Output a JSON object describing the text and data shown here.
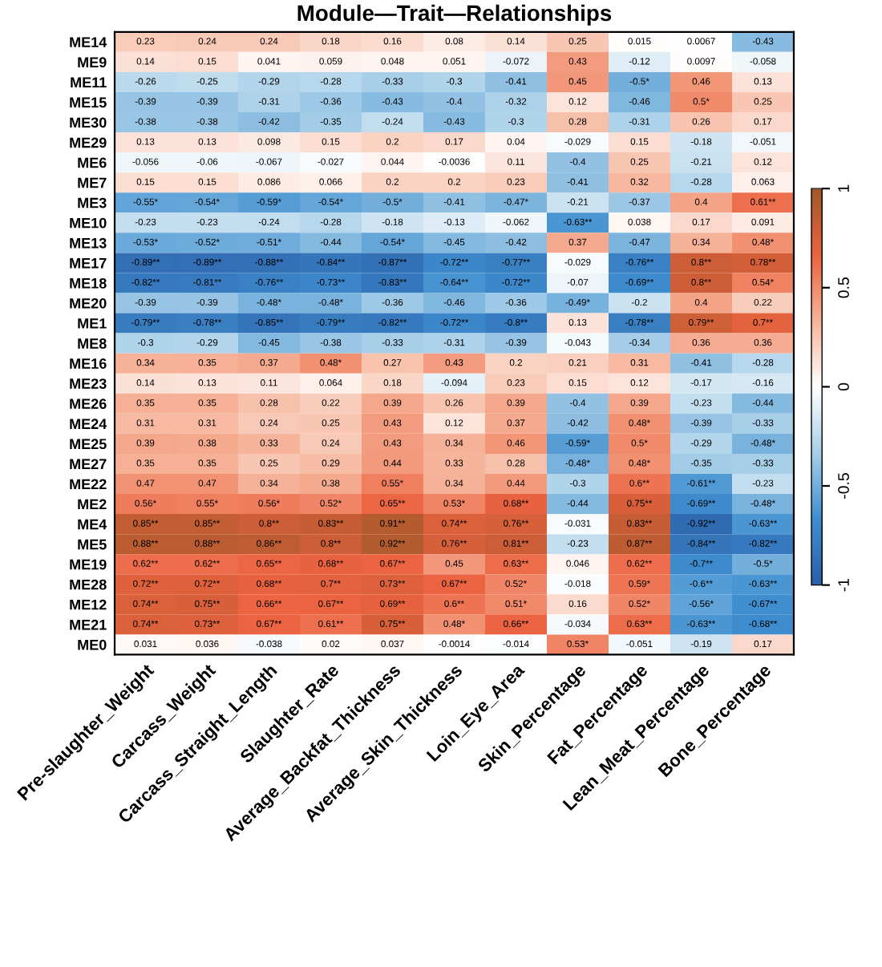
{
  "chart_data": {
    "type": "heatmap",
    "title": "Module—Trait—Relationships",
    "categories": [
      "Pre-slaughter_Weight",
      "Carcass_Weight",
      "Carcass_Straight_Length",
      "Slaughter_Rate",
      "Average_Backfat_Thickness",
      "Average_Skin_Thickness",
      "Loin_Eye_Area",
      "Skin_Percentage",
      "Fat_Percentage",
      "Lean_Meat_Percentage",
      "Bone_Percentage"
    ],
    "y_categories": [
      "ME14",
      "ME9",
      "ME11",
      "ME15",
      "ME30",
      "ME29",
      "ME6",
      "ME7",
      "ME3",
      "ME10",
      "ME13",
      "ME17",
      "ME18",
      "ME20",
      "ME1",
      "ME8",
      "ME16",
      "ME23",
      "ME26",
      "ME24",
      "ME25",
      "ME27",
      "ME22",
      "ME2",
      "ME4",
      "ME5",
      "ME19",
      "ME28",
      "ME12",
      "ME21",
      "ME0"
    ],
    "cells": [
      [
        0.23,
        0.24,
        0.24,
        0.18,
        0.16,
        0.08,
        0.14,
        0.25,
        0.015,
        0.0067,
        -0.43
      ],
      [
        0.14,
        0.15,
        0.041,
        0.059,
        0.048,
        0.051,
        -0.072,
        0.43,
        -0.12,
        0.0097,
        -0.058
      ],
      [
        -0.26,
        -0.25,
        -0.29,
        -0.28,
        -0.33,
        -0.3,
        -0.41,
        0.45,
        -0.5,
        0.46,
        0.13
      ],
      [
        -0.39,
        -0.39,
        -0.31,
        -0.36,
        -0.43,
        -0.4,
        -0.32,
        0.12,
        -0.46,
        0.5,
        0.25
      ],
      [
        -0.38,
        -0.38,
        -0.42,
        -0.35,
        -0.24,
        -0.43,
        -0.3,
        0.28,
        -0.31,
        0.26,
        0.17
      ],
      [
        0.13,
        0.13,
        0.098,
        0.15,
        0.2,
        0.17,
        0.04,
        -0.029,
        0.15,
        -0.18,
        -0.051
      ],
      [
        -0.056,
        -0.06,
        -0.067,
        -0.027,
        0.044,
        -0.0036,
        0.11,
        -0.4,
        0.25,
        -0.21,
        0.12
      ],
      [
        0.15,
        0.15,
        0.086,
        0.066,
        0.2,
        0.2,
        0.23,
        -0.41,
        0.32,
        -0.28,
        0.063
      ],
      [
        -0.55,
        -0.54,
        -0.59,
        -0.54,
        -0.5,
        -0.41,
        -0.47,
        -0.21,
        -0.37,
        0.4,
        0.61
      ],
      [
        -0.23,
        -0.23,
        -0.24,
        -0.28,
        -0.18,
        -0.13,
        -0.062,
        -0.63,
        0.038,
        0.17,
        0.091
      ],
      [
        -0.53,
        -0.52,
        -0.51,
        -0.44,
        -0.54,
        -0.45,
        -0.42,
        0.37,
        -0.47,
        0.34,
        0.48
      ],
      [
        -0.89,
        -0.89,
        -0.88,
        -0.84,
        -0.87,
        -0.72,
        -0.77,
        -0.029,
        -0.76,
        0.8,
        0.78
      ],
      [
        -0.82,
        -0.81,
        -0.76,
        -0.73,
        -0.83,
        -0.64,
        -0.72,
        -0.07,
        -0.69,
        0.8,
        0.54
      ],
      [
        -0.39,
        -0.39,
        -0.48,
        -0.48,
        -0.36,
        -0.46,
        -0.36,
        -0.49,
        -0.2,
        0.4,
        0.22
      ],
      [
        -0.79,
        -0.78,
        -0.85,
        -0.79,
        -0.82,
        -0.72,
        -0.8,
        0.13,
        -0.78,
        0.79,
        0.7
      ],
      [
        -0.3,
        -0.29,
        -0.45,
        -0.38,
        -0.33,
        -0.31,
        -0.39,
        -0.043,
        -0.34,
        0.36,
        0.36
      ],
      [
        0.34,
        0.35,
        0.37,
        0.48,
        0.27,
        0.43,
        0.2,
        0.21,
        0.31,
        -0.41,
        -0.28
      ],
      [
        0.14,
        0.13,
        0.11,
        0.064,
        0.18,
        -0.094,
        0.23,
        0.15,
        0.12,
        -0.17,
        -0.16
      ],
      [
        0.35,
        0.35,
        0.28,
        0.22,
        0.39,
        0.26,
        0.39,
        -0.4,
        0.39,
        -0.23,
        -0.44
      ],
      [
        0.31,
        0.31,
        0.24,
        0.25,
        0.43,
        0.12,
        0.37,
        -0.42,
        0.48,
        -0.39,
        -0.33
      ],
      [
        0.39,
        0.38,
        0.33,
        0.24,
        0.43,
        0.34,
        0.46,
        -0.59,
        0.5,
        -0.29,
        -0.48
      ],
      [
        0.35,
        0.35,
        0.25,
        0.29,
        0.44,
        0.33,
        0.28,
        -0.48,
        0.48,
        -0.35,
        -0.33
      ],
      [
        0.47,
        0.47,
        0.34,
        0.38,
        0.55,
        0.34,
        0.44,
        -0.3,
        0.6,
        -0.61,
        -0.23
      ],
      [
        0.56,
        0.55,
        0.56,
        0.52,
        0.65,
        0.53,
        0.68,
        -0.44,
        0.75,
        -0.69,
        -0.48
      ],
      [
        0.85,
        0.85,
        0.8,
        0.83,
        0.91,
        0.74,
        0.76,
        -0.031,
        0.83,
        -0.92,
        -0.63
      ],
      [
        0.88,
        0.88,
        0.86,
        0.8,
        0.92,
        0.76,
        0.81,
        -0.23,
        0.87,
        -0.84,
        -0.82
      ],
      [
        0.62,
        0.62,
        0.65,
        0.68,
        0.67,
        0.45,
        0.63,
        0.046,
        0.62,
        -0.7,
        -0.5
      ],
      [
        0.72,
        0.72,
        0.68,
        0.7,
        0.73,
        0.67,
        0.52,
        -0.018,
        0.59,
        -0.6,
        -0.63
      ],
      [
        0.74,
        0.75,
        0.66,
        0.67,
        0.69,
        0.6,
        0.51,
        0.16,
        0.52,
        -0.56,
        -0.67
      ],
      [
        0.74,
        0.73,
        0.67,
        0.61,
        0.75,
        0.48,
        0.66,
        -0.034,
        0.63,
        -0.63,
        -0.68
      ],
      [
        0.031,
        0.036,
        -0.038,
        0.02,
        0.037,
        -0.0014,
        -0.014,
        0.53,
        -0.051,
        -0.19,
        0.17
      ]
    ],
    "cell_labels": [
      [
        "0.23",
        "0.24",
        "0.24",
        "0.18",
        "0.16",
        "0.08",
        "0.14",
        "0.25",
        "0.015",
        "0.0067",
        "-0.43"
      ],
      [
        "0.14",
        "0.15",
        "0.041",
        "0.059",
        "0.048",
        "0.051",
        "-0.072",
        "0.43",
        "-0.12",
        "0.0097",
        "-0.058"
      ],
      [
        "-0.26",
        "-0.25",
        "-0.29",
        "-0.28",
        "-0.33",
        "-0.3",
        "-0.41",
        "0.45",
        "-0.5*",
        "0.46",
        "0.13"
      ],
      [
        "-0.39",
        "-0.39",
        "-0.31",
        "-0.36",
        "-0.43",
        "-0.4",
        "-0.32",
        "0.12",
        "-0.46",
        "0.5*",
        "0.25"
      ],
      [
        "-0.38",
        "-0.38",
        "-0.42",
        "-0.35",
        "-0.24",
        "-0.43",
        "-0.3",
        "0.28",
        "-0.31",
        "0.26",
        "0.17"
      ],
      [
        "0.13",
        "0.13",
        "0.098",
        "0.15",
        "0.2",
        "0.17",
        "0.04",
        "-0.029",
        "0.15",
        "-0.18",
        "-0.051"
      ],
      [
        "-0.056",
        "-0.06",
        "-0.067",
        "-0.027",
        "0.044",
        "-0.0036",
        "0.11",
        "-0.4",
        "0.25",
        "-0.21",
        "0.12"
      ],
      [
        "0.15",
        "0.15",
        "0.086",
        "0.066",
        "0.2",
        "0.2",
        "0.23",
        "-0.41",
        "0.32",
        "-0.28",
        "0.063"
      ],
      [
        "-0.55*",
        "-0.54*",
        "-0.59*",
        "-0.54*",
        "-0.5*",
        "-0.41",
        "-0.47*",
        "-0.21",
        "-0.37",
        "0.4",
        "0.61**"
      ],
      [
        "-0.23",
        "-0.23",
        "-0.24",
        "-0.28",
        "-0.18",
        "-0.13",
        "-0.062",
        "-0.63**",
        "0.038",
        "0.17",
        "0.091"
      ],
      [
        "-0.53*",
        "-0.52*",
        "-0.51*",
        "-0.44",
        "-0.54*",
        "-0.45",
        "-0.42",
        "0.37",
        "-0.47",
        "0.34",
        "0.48*"
      ],
      [
        "-0.89**",
        "-0.89**",
        "-0.88**",
        "-0.84**",
        "-0.87**",
        "-0.72**",
        "-0.77**",
        "-0.029",
        "-0.76**",
        "0.8**",
        "0.78**"
      ],
      [
        "-0.82**",
        "-0.81**",
        "-0.76**",
        "-0.73**",
        "-0.83**",
        "-0.64**",
        "-0.72**",
        "-0.07",
        "-0.69**",
        "0.8**",
        "0.54*"
      ],
      [
        "-0.39",
        "-0.39",
        "-0.48*",
        "-0.48*",
        "-0.36",
        "-0.46",
        "-0.36",
        "-0.49*",
        "-0.2",
        "0.4",
        "0.22"
      ],
      [
        "-0.79**",
        "-0.78**",
        "-0.85**",
        "-0.79**",
        "-0.82**",
        "-0.72**",
        "-0.8**",
        "0.13",
        "-0.78**",
        "0.79**",
        "0.7**"
      ],
      [
        "-0.3",
        "-0.29",
        "-0.45",
        "-0.38",
        "-0.33",
        "-0.31",
        "-0.39",
        "-0.043",
        "-0.34",
        "0.36",
        "0.36"
      ],
      [
        "0.34",
        "0.35",
        "0.37",
        "0.48*",
        "0.27",
        "0.43",
        "0.2",
        "0.21",
        "0.31",
        "-0.41",
        "-0.28"
      ],
      [
        "0.14",
        "0.13",
        "0.11",
        "0.064",
        "0.18",
        "-0.094",
        "0.23",
        "0.15",
        "0.12",
        "-0.17",
        "-0.16"
      ],
      [
        "0.35",
        "0.35",
        "0.28",
        "0.22",
        "0.39",
        "0.26",
        "0.39",
        "-0.4",
        "0.39",
        "-0.23",
        "-0.44"
      ],
      [
        "0.31",
        "0.31",
        "0.24",
        "0.25",
        "0.43",
        "0.12",
        "0.37",
        "-0.42",
        "0.48*",
        "-0.39",
        "-0.33"
      ],
      [
        "0.39",
        "0.38",
        "0.33",
        "0.24",
        "0.43",
        "0.34",
        "0.46",
        "-0.59*",
        "0.5*",
        "-0.29",
        "-0.48*"
      ],
      [
        "0.35",
        "0.35",
        "0.25",
        "0.29",
        "0.44",
        "0.33",
        "0.28",
        "-0.48*",
        "0.48*",
        "-0.35",
        "-0.33"
      ],
      [
        "0.47",
        "0.47",
        "0.34",
        "0.38",
        "0.55*",
        "0.34",
        "0.44",
        "-0.3",
        "0.6**",
        "-0.61**",
        "-0.23"
      ],
      [
        "0.56*",
        "0.55*",
        "0.56*",
        "0.52*",
        "0.65**",
        "0.53*",
        "0.68**",
        "-0.44",
        "0.75**",
        "-0.69**",
        "-0.48*"
      ],
      [
        "0.85**",
        "0.85**",
        "0.8**",
        "0.83**",
        "0.91**",
        "0.74**",
        "0.76**",
        "-0.031",
        "0.83**",
        "-0.92**",
        "-0.63**"
      ],
      [
        "0.88**",
        "0.88**",
        "0.86**",
        "0.8**",
        "0.92**",
        "0.76**",
        "0.81**",
        "-0.23",
        "0.87**",
        "-0.84**",
        "-0.82**"
      ],
      [
        "0.62**",
        "0.62**",
        "0.65**",
        "0.68**",
        "0.67**",
        "0.45",
        "0.63**",
        "0.046",
        "0.62**",
        "-0.7**",
        "-0.5*"
      ],
      [
        "0.72**",
        "0.72**",
        "0.68**",
        "0.7**",
        "0.73**",
        "0.67**",
        "0.52*",
        "-0.018",
        "0.59*",
        "-0.6**",
        "-0.63**"
      ],
      [
        "0.74**",
        "0.75**",
        "0.66**",
        "0.67**",
        "0.69**",
        "0.6**",
        "0.51*",
        "0.16",
        "0.52*",
        "-0.56*",
        "-0.67**"
      ],
      [
        "0.74**",
        "0.73**",
        "0.67**",
        "0.61**",
        "0.75**",
        "0.48*",
        "0.66**",
        "-0.034",
        "0.63**",
        "-0.63**",
        "-0.68**"
      ],
      [
        "0.031",
        "0.036",
        "-0.038",
        "0.02",
        "0.037",
        "-0.0014",
        "-0.014",
        "0.53*",
        "-0.051",
        "-0.19",
        "0.17"
      ]
    ],
    "clim": [
      -1,
      1
    ],
    "cticks": [
      -1,
      -0.5,
      0,
      0.5,
      1
    ]
  }
}
